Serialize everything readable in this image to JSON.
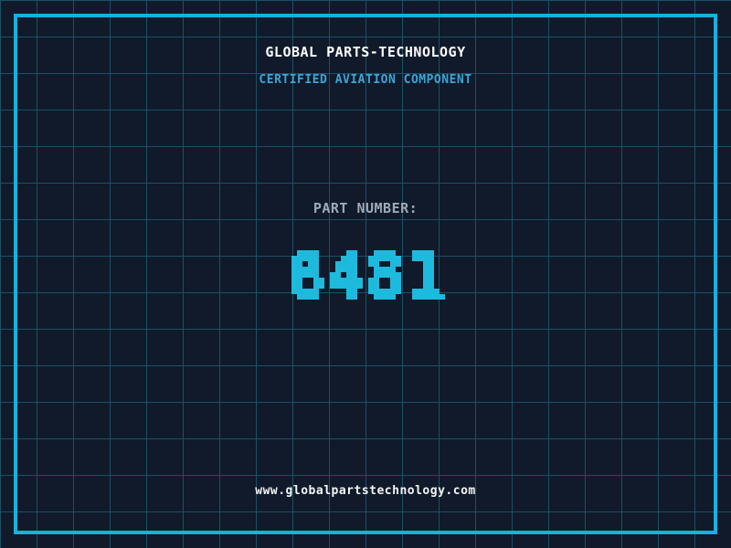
{
  "header": {
    "title": "GLOBAL PARTS-TECHNOLOGY",
    "subtitle": "CERTIFIED AVIATION COMPONENT"
  },
  "part": {
    "label": "PART NUMBER:",
    "number": "8481"
  },
  "footer": {
    "website": "www.globalpartstechnology.com"
  },
  "colors": {
    "background": "#101a2a",
    "grid_line": "#1b5067",
    "frame_border": "#14b2e0",
    "title_text": "#ffffff",
    "subtitle_text": "#3aa6d8",
    "label_text": "#9eaab8",
    "number_text": "#1ebadd",
    "website_text": "#f4f6f7"
  }
}
